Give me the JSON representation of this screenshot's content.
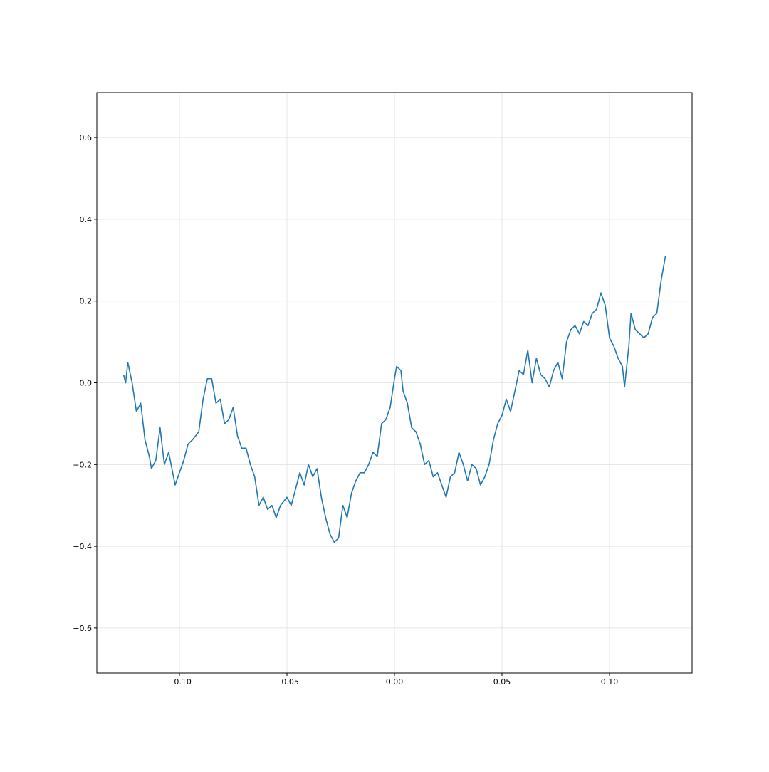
{
  "chart_data": {
    "type": "line",
    "x": [
      -0.126,
      -0.125,
      -0.124,
      -0.122,
      -0.12,
      -0.118,
      -0.116,
      -0.114,
      -0.113,
      -0.111,
      -0.109,
      -0.107,
      -0.105,
      -0.102,
      -0.1,
      -0.098,
      -0.096,
      -0.094,
      -0.091,
      -0.089,
      -0.087,
      -0.085,
      -0.083,
      -0.081,
      -0.079,
      -0.077,
      -0.075,
      -0.073,
      -0.071,
      -0.069,
      -0.067,
      -0.065,
      -0.063,
      -0.061,
      -0.059,
      -0.057,
      -0.055,
      -0.053,
      -0.05,
      -0.048,
      -0.046,
      -0.044,
      -0.042,
      -0.04,
      -0.038,
      -0.036,
      -0.034,
      -0.032,
      -0.03,
      -0.028,
      -0.026,
      -0.024,
      -0.022,
      -0.02,
      -0.018,
      -0.016,
      -0.014,
      -0.012,
      -0.01,
      -0.008,
      -0.006,
      -0.004,
      -0.002,
      0.0,
      0.001,
      0.003,
      0.004,
      0.006,
      0.008,
      0.01,
      0.012,
      0.014,
      0.016,
      0.018,
      0.02,
      0.022,
      0.024,
      0.026,
      0.028,
      0.03,
      0.032,
      0.034,
      0.036,
      0.038,
      0.04,
      0.042,
      0.044,
      0.046,
      0.048,
      0.05,
      0.052,
      0.054,
      0.056,
      0.058,
      0.06,
      0.062,
      0.064,
      0.066,
      0.068,
      0.07,
      0.072,
      0.074,
      0.076,
      0.078,
      0.08,
      0.082,
      0.084,
      0.086,
      0.088,
      0.09,
      0.092,
      0.094,
      0.096,
      0.098,
      0.1,
      0.102,
      0.104,
      0.106,
      0.107,
      0.109,
      0.11,
      0.112,
      0.114,
      0.116,
      0.118,
      0.12,
      0.122,
      0.124,
      0.126
    ],
    "series": [
      {
        "color": "#1f77b4",
        "values": [
          0.02,
          0.0,
          0.05,
          0.0,
          -0.07,
          -0.05,
          -0.14,
          -0.18,
          -0.21,
          -0.19,
          -0.11,
          -0.2,
          -0.17,
          -0.25,
          -0.22,
          -0.19,
          -0.15,
          -0.14,
          -0.12,
          -0.04,
          0.01,
          0.01,
          -0.05,
          -0.04,
          -0.1,
          -0.09,
          -0.06,
          -0.13,
          -0.16,
          -0.16,
          -0.2,
          -0.23,
          -0.3,
          -0.28,
          -0.31,
          -0.3,
          -0.33,
          -0.3,
          -0.28,
          -0.3,
          -0.26,
          -0.22,
          -0.25,
          -0.2,
          -0.23,
          -0.21,
          -0.28,
          -0.33,
          -0.37,
          -0.39,
          -0.38,
          -0.3,
          -0.33,
          -0.27,
          -0.24,
          -0.22,
          -0.22,
          -0.2,
          -0.17,
          -0.18,
          -0.1,
          -0.09,
          -0.06,
          0.01,
          0.04,
          0.03,
          -0.02,
          -0.05,
          -0.11,
          -0.12,
          -0.15,
          -0.2,
          -0.19,
          -0.23,
          -0.22,
          -0.25,
          -0.28,
          -0.23,
          -0.22,
          -0.17,
          -0.2,
          -0.24,
          -0.2,
          -0.21,
          -0.25,
          -0.23,
          -0.2,
          -0.14,
          -0.1,
          -0.08,
          -0.04,
          -0.07,
          -0.02,
          0.03,
          0.02,
          0.08,
          0.0,
          0.06,
          0.02,
          0.01,
          -0.01,
          0.03,
          0.05,
          0.01,
          0.1,
          0.13,
          0.14,
          0.12,
          0.15,
          0.14,
          0.17,
          0.18,
          0.22,
          0.19,
          0.11,
          0.09,
          0.06,
          0.04,
          -0.01,
          0.09,
          0.17,
          0.13,
          0.12,
          0.11,
          0.12,
          0.16,
          0.17,
          0.25,
          0.31
        ]
      }
    ],
    "xlim": [
      -0.1384,
      0.1384
    ],
    "ylim": [
      -0.71,
      0.71
    ],
    "xticks": [
      {
        "value": -0.1,
        "label": "−0.10"
      },
      {
        "value": -0.05,
        "label": "−0.05"
      },
      {
        "value": 0,
        "label": "0.00"
      },
      0.05,
      {
        "value": 0.1,
        "label": "0.10"
      }
    ],
    "yticks": [
      {
        "value": -0.6,
        "label": "−0.6"
      },
      {
        "value": -0.4,
        "label": "−0.4"
      },
      {
        "value": -0.2,
        "label": "−0.2"
      },
      {
        "value": 0,
        "label": "0.0"
      },
      0.2,
      0.4,
      0.6
    ],
    "grid": true
  }
}
